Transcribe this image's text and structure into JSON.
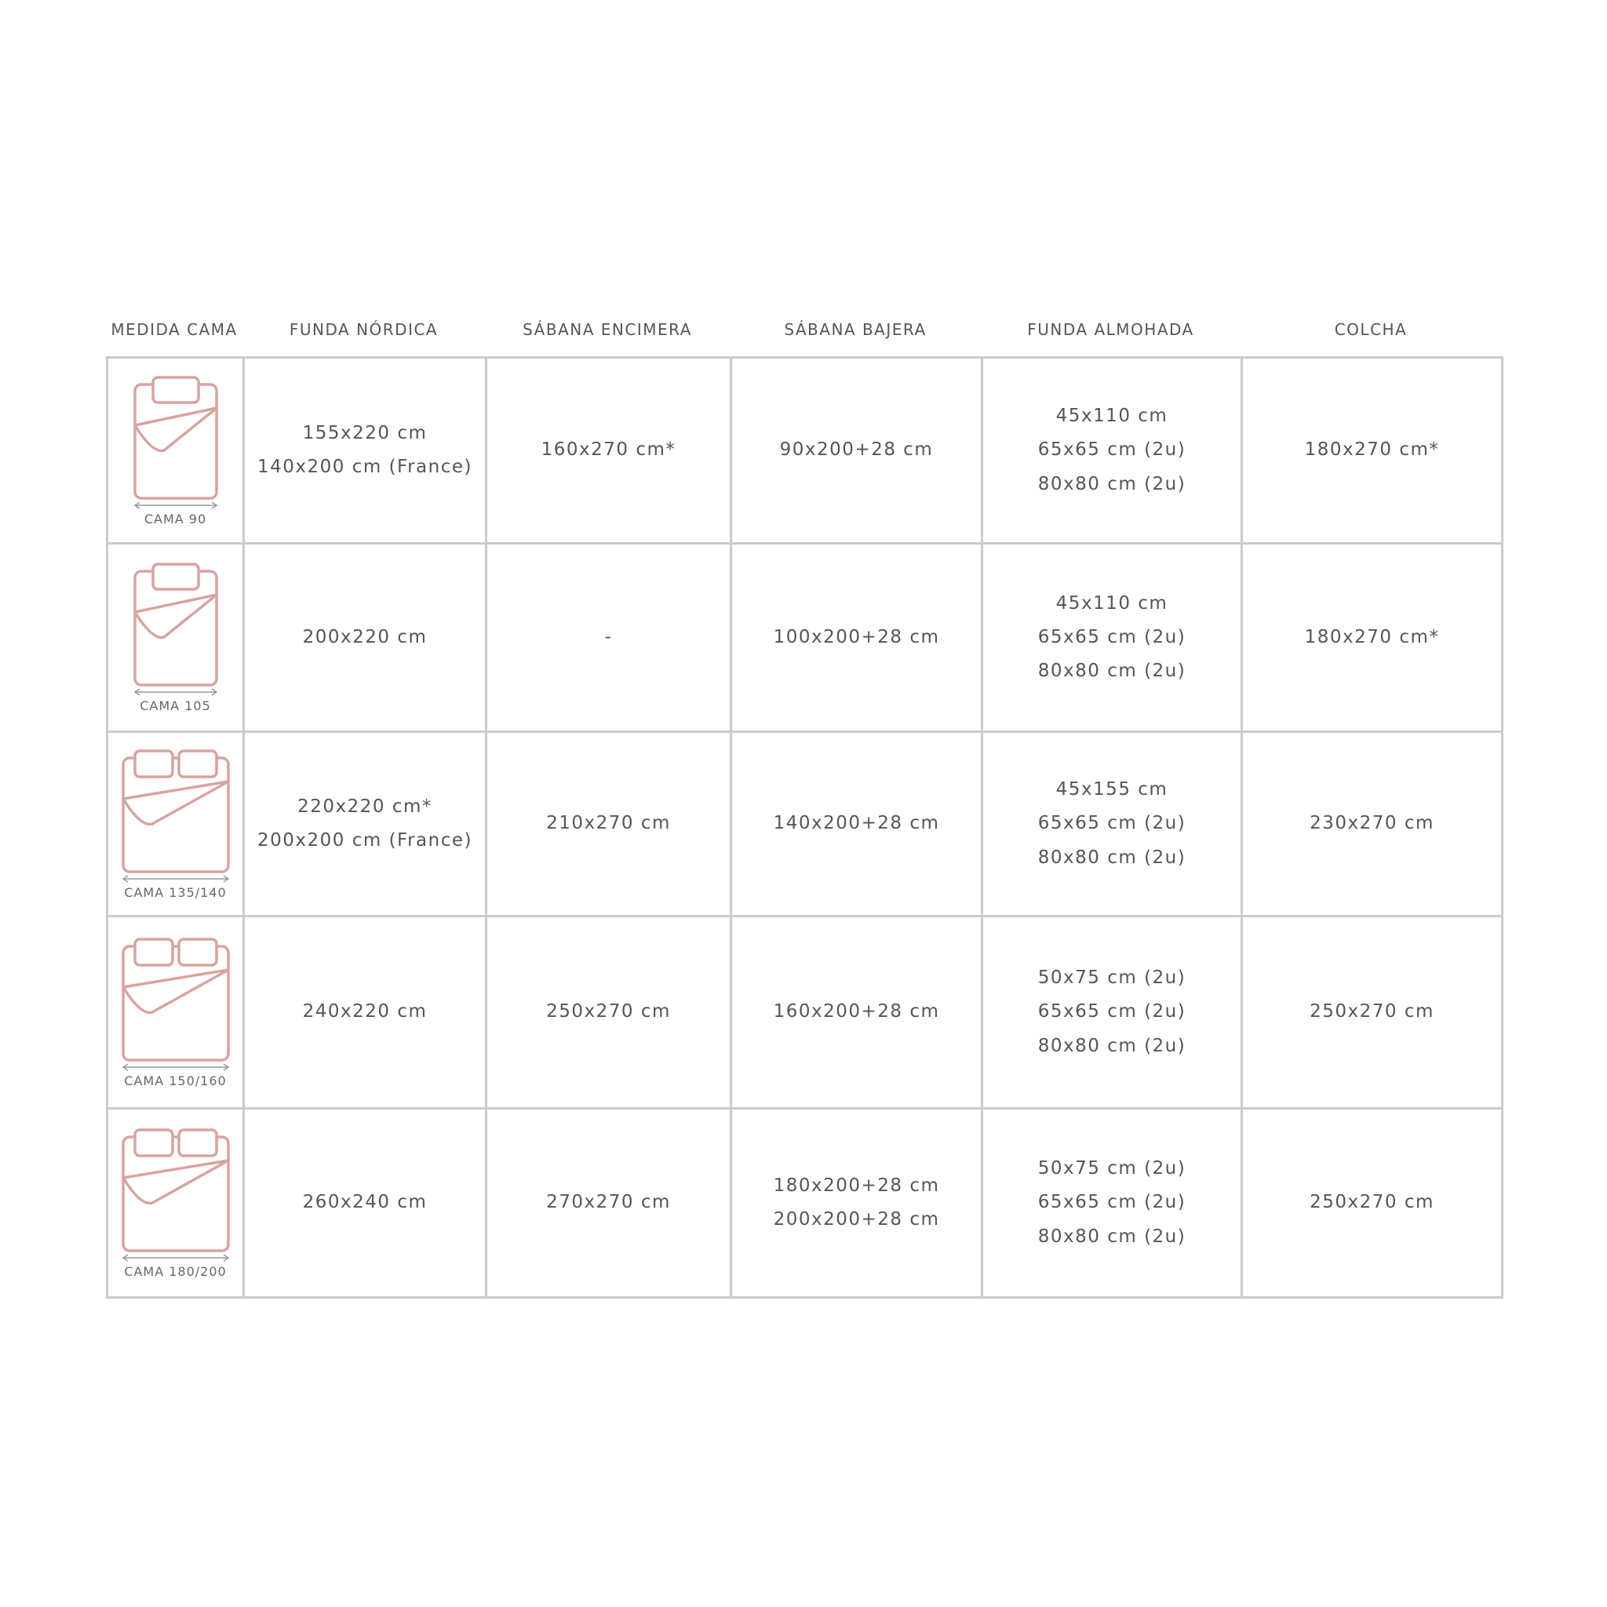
{
  "headers": [
    "MEDIDA CAMA",
    "FUNDA NÓRDICA",
    "SÁBANA ENCIMERA",
    "SÁBANA BAJERA",
    "FUNDA ALMOHADA",
    "COLCHA"
  ],
  "colors": {
    "icon": "#d9a3a0",
    "border": "#cbcbcb",
    "text": "#555555"
  },
  "rows": [
    {
      "bed": "CAMA 90",
      "icon": "single-bed-icon",
      "funda_nordica": [
        "155x220 cm",
        "140x200 cm (France)"
      ],
      "sabana_encimera": [
        "160x270 cm*"
      ],
      "sabana_bajera": [
        "90x200+28 cm"
      ],
      "funda_almohada": [
        "45x110 cm",
        "65x65 cm (2u)",
        "80x80 cm (2u)"
      ],
      "colcha": [
        "180x270 cm*"
      ]
    },
    {
      "bed": "CAMA 105",
      "icon": "single-bed-icon",
      "funda_nordica": [
        "200x220 cm"
      ],
      "sabana_encimera": [
        "-"
      ],
      "sabana_bajera": [
        "100x200+28 cm"
      ],
      "funda_almohada": [
        "45x110 cm",
        "65x65 cm (2u)",
        "80x80 cm (2u)"
      ],
      "colcha": [
        "180x270 cm*"
      ]
    },
    {
      "bed": "CAMA 135/140",
      "icon": "double-bed-icon",
      "funda_nordica": [
        "220x220 cm*",
        "200x200 cm (France)"
      ],
      "sabana_encimera": [
        "210x270 cm"
      ],
      "sabana_bajera": [
        "140x200+28 cm"
      ],
      "funda_almohada": [
        "45x155 cm",
        "65x65 cm (2u)",
        "80x80 cm (2u)"
      ],
      "colcha": [
        "230x270 cm"
      ]
    },
    {
      "bed": "CAMA 150/160",
      "icon": "double-bed-icon",
      "funda_nordica": [
        "240x220 cm"
      ],
      "sabana_encimera": [
        "250x270 cm"
      ],
      "sabana_bajera": [
        "160x200+28 cm"
      ],
      "funda_almohada": [
        "50x75 cm (2u)",
        "65x65 cm (2u)",
        "80x80 cm (2u)"
      ],
      "colcha": [
        "250x270 cm"
      ]
    },
    {
      "bed": "CAMA 180/200",
      "icon": "double-bed-icon",
      "funda_nordica": [
        "260x240 cm"
      ],
      "sabana_encimera": [
        "270x270 cm"
      ],
      "sabana_bajera": [
        "180x200+28 cm",
        "200x200+28 cm"
      ],
      "funda_almohada": [
        "50x75 cm (2u)",
        "65x65 cm (2u)",
        "80x80 cm (2u)"
      ],
      "colcha": [
        "250x270 cm"
      ]
    }
  ]
}
